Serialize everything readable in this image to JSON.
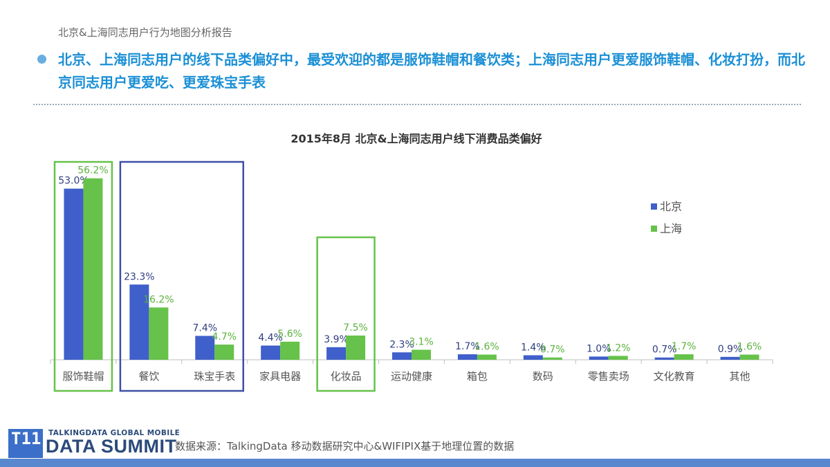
{
  "header": {
    "report_title": "北京&上海同志用户行为地图分析报告",
    "headline": "北京、上海同志用户的线下品类偏好中，最受欢迎的都是服饰鞋帽和餐饮类；上海同志用户更爱服饰鞋帽、化妆打扮，而北京同志用户更爱吃、更爱珠宝手表"
  },
  "chart_data": {
    "type": "bar",
    "title": "2015年8月   北京&上海同志用户线下消费品类偏好",
    "categories": [
      "服饰鞋帽",
      "餐饮",
      "珠宝手表",
      "家具电器",
      "化妆品",
      "运动健康",
      "箱包",
      "数码",
      "零售卖场",
      "文化教育",
      "其他"
    ],
    "series": [
      {
        "name": "北京",
        "color": "#3f5fca",
        "values": [
          53.0,
          23.3,
          7.4,
          4.4,
          3.9,
          2.3,
          1.7,
          1.4,
          1.0,
          0.7,
          0.9
        ]
      },
      {
        "name": "上海",
        "color": "#66c24a",
        "values": [
          56.2,
          16.2,
          4.7,
          5.6,
          7.5,
          3.1,
          1.6,
          0.7,
          1.2,
          1.7,
          1.6
        ]
      }
    ],
    "value_suffix": "%",
    "ylim": [
      0,
      60
    ],
    "legend_position": "top-right",
    "grid": false,
    "highlight_boxes": [
      {
        "categories": [
          "服饰鞋帽"
        ],
        "color": "#66c24a"
      },
      {
        "categories": [
          "餐饮",
          "珠宝手表"
        ],
        "color": "#3f4fa6"
      },
      {
        "categories": [
          "化妆品"
        ],
        "color": "#66c24a"
      }
    ]
  },
  "footer": {
    "logo_mark": "T11",
    "logo_top_text": "TALKINGDATA GLOBAL MOBILE",
    "logo_main_text": "DATA SUMMIT",
    "source": "数据来源：TalkingData 移动数据研究中心&WIFIPIX基于地理位置的数据",
    "bar_color": "#5a88cf"
  }
}
